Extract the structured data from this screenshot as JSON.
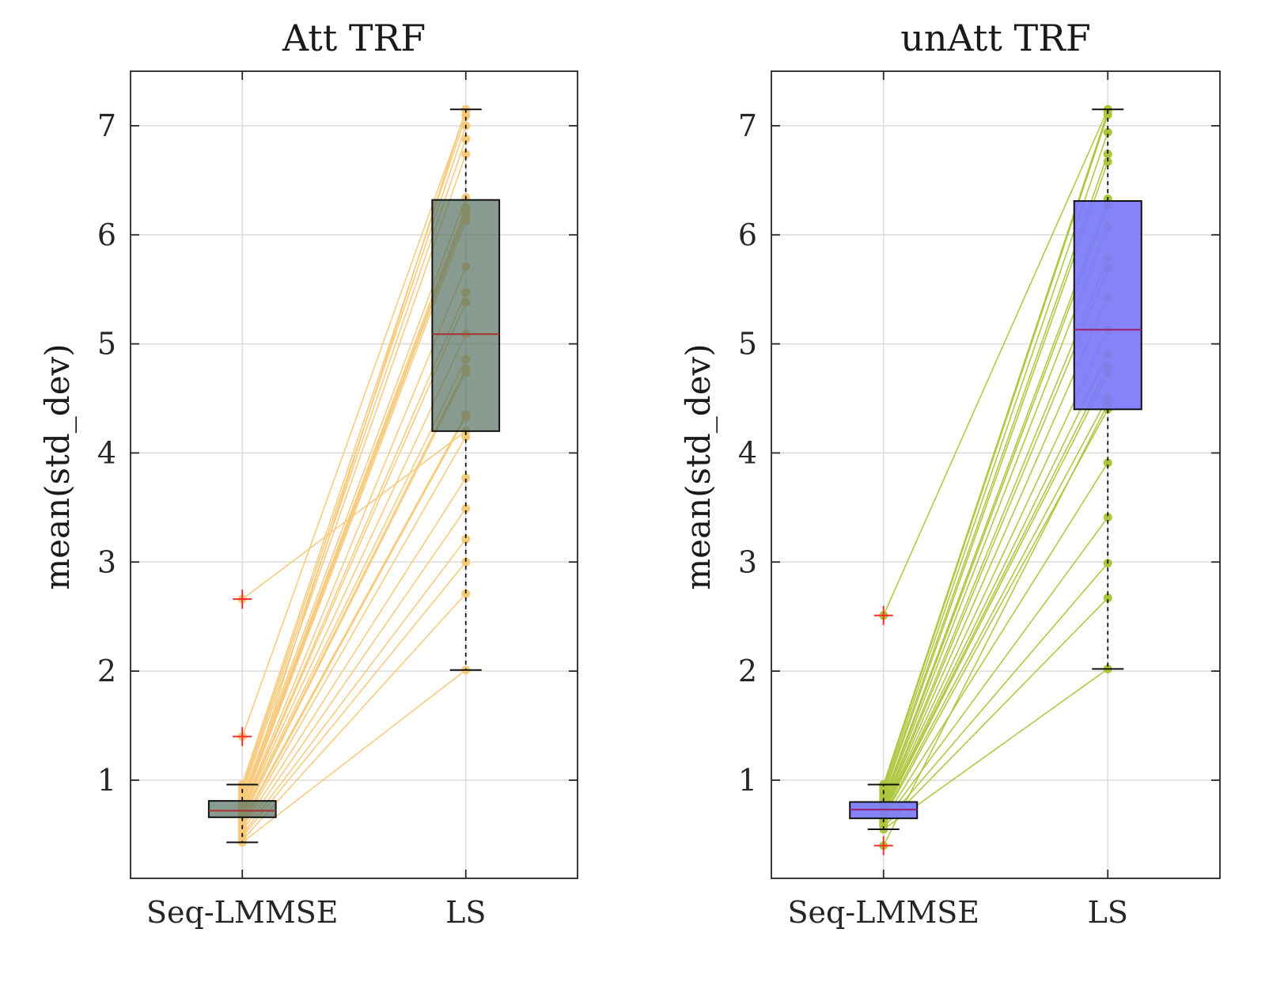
{
  "chart_data": [
    {
      "type": "box",
      "title": "Att TRF",
      "ylabel": "mean(std_dev)",
      "xlabel": "",
      "categories": [
        "Seq-LMMSE",
        "LS"
      ],
      "yticks": [
        "1",
        "2",
        "3",
        "4",
        "5",
        "6",
        "7"
      ],
      "ylim": [
        0.1,
        7.5
      ],
      "grid": true,
      "box_color": "#4f6b5b",
      "point_color": "#f7c97a",
      "median_color": "#a83232",
      "outlier_color": "#ff2a2a",
      "boxes": [
        {
          "category": "Seq-LMMSE",
          "q1": 0.66,
          "median": 0.72,
          "q3": 0.81,
          "whisker_low": 0.43,
          "whisker_high": 0.96,
          "outliers": [
            2.66,
            1.4
          ]
        },
        {
          "category": "LS",
          "q1": 4.2,
          "median": 5.09,
          "q3": 6.32,
          "whisker_low": 2.01,
          "whisker_high": 7.15,
          "outliers": []
        }
      ],
      "paired_points": [
        [
          0.43,
          2.01
        ],
        [
          0.45,
          2.71
        ],
        [
          0.48,
          3.0
        ],
        [
          0.5,
          3.21
        ],
        [
          0.53,
          3.49
        ],
        [
          0.56,
          3.77
        ],
        [
          0.58,
          4.15
        ],
        [
          0.6,
          4.33
        ],
        [
          0.62,
          4.35
        ],
        [
          0.64,
          4.74
        ],
        [
          0.66,
          4.77
        ],
        [
          0.68,
          4.86
        ],
        [
          0.7,
          5.09
        ],
        [
          0.71,
          5.38
        ],
        [
          0.72,
          5.47
        ],
        [
          0.73,
          5.71
        ],
        [
          0.75,
          6.13
        ],
        [
          0.77,
          6.18
        ],
        [
          0.79,
          6.21
        ],
        [
          0.81,
          6.25
        ],
        [
          0.84,
          6.34
        ],
        [
          0.87,
          6.74
        ],
        [
          0.9,
          6.88
        ],
        [
          0.93,
          7.0
        ],
        [
          0.96,
          7.09
        ],
        [
          1.4,
          7.13
        ],
        [
          2.66,
          4.2
        ],
        [
          0.74,
          7.15
        ]
      ]
    },
    {
      "type": "box",
      "title": "unAtt TRF",
      "ylabel": "mean(std_dev)",
      "xlabel": "",
      "categories": [
        "Seq-LMMSE",
        "LS"
      ],
      "yticks": [
        "1",
        "2",
        "3",
        "4",
        "5",
        "6",
        "7"
      ],
      "ylim": [
        0.1,
        7.5
      ],
      "grid": true,
      "box_color": "#7a7af7",
      "point_color": "#acc63c",
      "median_color": "#9b1f6b",
      "outlier_color": "#ff2a2a",
      "boxes": [
        {
          "category": "Seq-LMMSE",
          "q1": 0.65,
          "median": 0.73,
          "q3": 0.8,
          "whisker_low": 0.55,
          "whisker_high": 0.96,
          "outliers": [
            2.51,
            0.4
          ]
        },
        {
          "category": "LS",
          "q1": 4.4,
          "median": 5.13,
          "q3": 6.31,
          "whisker_low": 2.02,
          "whisker_high": 7.15,
          "outliers": []
        }
      ],
      "paired_points": [
        [
          0.55,
          2.02
        ],
        [
          0.57,
          2.67
        ],
        [
          0.59,
          2.99
        ],
        [
          0.61,
          3.41
        ],
        [
          0.63,
          3.91
        ],
        [
          0.65,
          4.4
        ],
        [
          0.67,
          4.51
        ],
        [
          0.69,
          4.73
        ],
        [
          0.7,
          4.79
        ],
        [
          0.71,
          4.91
        ],
        [
          0.72,
          5.13
        ],
        [
          0.73,
          5.43
        ],
        [
          0.74,
          5.69
        ],
        [
          0.76,
          5.79
        ],
        [
          0.78,
          6.08
        ],
        [
          0.8,
          6.27
        ],
        [
          0.82,
          6.33
        ],
        [
          0.85,
          6.67
        ],
        [
          0.88,
          6.74
        ],
        [
          0.91,
          6.94
        ],
        [
          0.94,
          7.1
        ],
        [
          0.96,
          7.13
        ],
        [
          2.51,
          7.15
        ],
        [
          0.4,
          4.45
        ]
      ]
    }
  ]
}
